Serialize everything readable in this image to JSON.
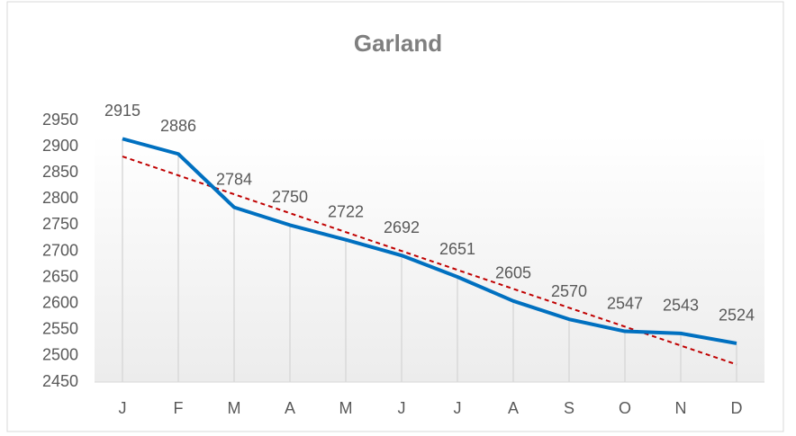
{
  "chart_data": {
    "type": "line",
    "title": "Garland",
    "categories": [
      "J",
      "F",
      "M",
      "A",
      "M",
      "J",
      "J",
      "A",
      "S",
      "O",
      "N",
      "D"
    ],
    "series": [
      {
        "name": "Garland",
        "color": "#0070c0",
        "values": [
          2915,
          2886,
          2784,
          2750,
          2722,
          2692,
          2651,
          2605,
          2570,
          2547,
          2543,
          2524
        ]
      }
    ],
    "ylim": [
      2450,
      2950
    ],
    "yticks": [
      2450,
      2500,
      2550,
      2600,
      2650,
      2700,
      2750,
      2800,
      2850,
      2900,
      2950
    ],
    "drop_lines": true,
    "data_labels": true,
    "trendline": {
      "type": "linear",
      "color": "#c00000",
      "dashed": true
    }
  }
}
